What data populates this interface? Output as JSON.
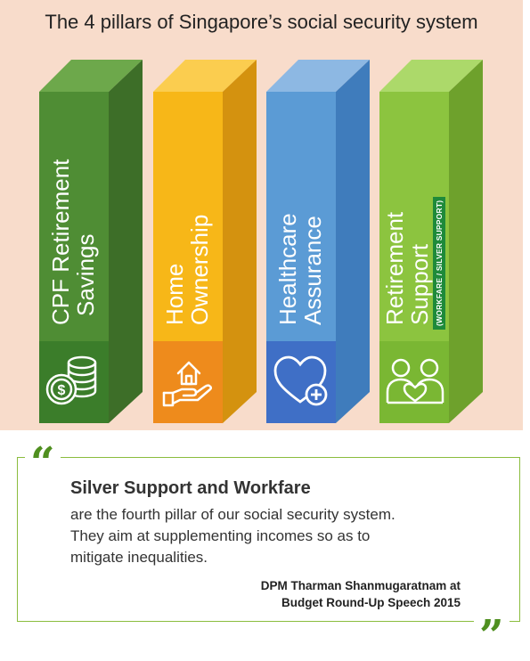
{
  "title": "The 4 pillars of Singapore’s social security system",
  "pillars": [
    {
      "label_line1": "CPF Retirement",
      "label_line2": "Savings",
      "icon": "coins-dollar-icon",
      "colors": {
        "front": "#4f8d34",
        "side": "#3d6e28",
        "top": "#6da84b",
        "base": "#3b7d2a"
      }
    },
    {
      "label_line1": "Home",
      "label_line2": "Ownership",
      "icon": "hand-house-icon",
      "colors": {
        "front": "#f7b718",
        "side": "#d4920f",
        "top": "#fbcd4f",
        "base": "#ee8b1c"
      }
    },
    {
      "label_line1": "Healthcare",
      "label_line2": "Assurance",
      "icon": "heart-plus-icon",
      "colors": {
        "front": "#5b9bd5",
        "side": "#3f7cbc",
        "top": "#8db8e3",
        "base": "#3f6fc6"
      }
    },
    {
      "label_line1": "Retirement",
      "label_line2": "Support",
      "sub": "(WORKFARE / SILVER SUPPORT)",
      "icon": "two-people-heart-icon",
      "colors": {
        "front": "#8cc43f",
        "side": "#6ea12c",
        "top": "#acd96a",
        "base": "#7ab733"
      }
    }
  ],
  "quote": {
    "open_mark": "“",
    "close_mark": "”",
    "heading": "Silver Support and Workfare",
    "lines": [
      "are the fourth pillar of our social security system.",
      "They aim at supplementing incomes so as to",
      "mitigate inequalities."
    ],
    "attribution_line1": "DPM Tharman Shanmugaratnam at",
    "attribution_line2": "Budget Round-Up Speech 2015"
  }
}
